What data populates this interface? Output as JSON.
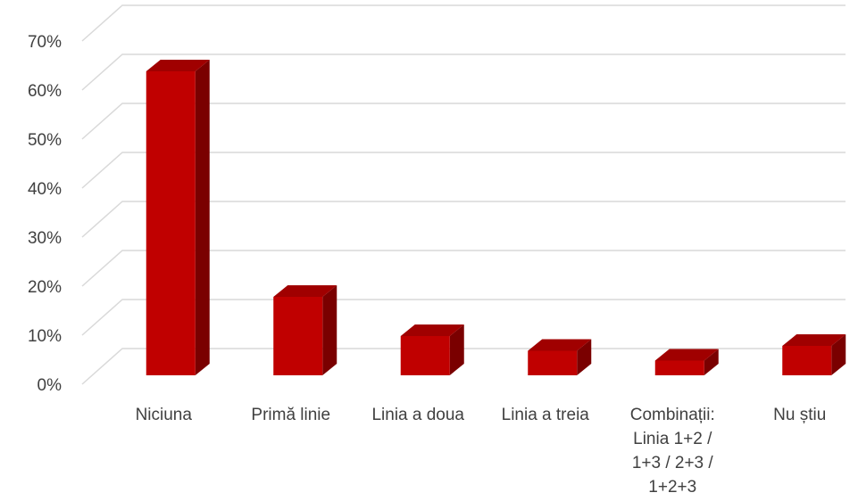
{
  "chart_data": {
    "type": "bar",
    "style": "3d-clustered-column",
    "categories": [
      [
        "Niciuna"
      ],
      [
        "Primă linie"
      ],
      [
        "Linia a doua"
      ],
      [
        "Linia a treia"
      ],
      [
        "Combinații:",
        "Linia 1+2 /",
        "1+3 / 2+3 /",
        "1+2+3"
      ],
      [
        "Nu știu"
      ]
    ],
    "values": [
      0.62,
      0.16,
      0.08,
      0.05,
      0.03,
      0.06
    ],
    "yticks": [
      "0%",
      "10%",
      "20%",
      "30%",
      "40%",
      "50%",
      "60%",
      "70%"
    ],
    "ylim": [
      0,
      0.7
    ],
    "grid": true,
    "legend": "none",
    "colors": {
      "front": "#c00000",
      "side": "#7a0000",
      "top": "#a00000",
      "grid": "#d9d9d9",
      "text": "#404040"
    }
  }
}
